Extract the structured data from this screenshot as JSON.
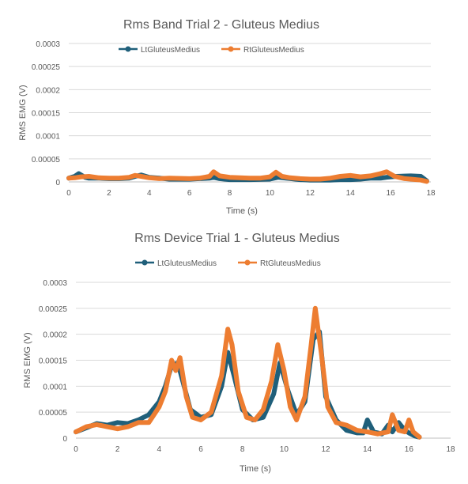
{
  "colors": {
    "lt": "#1F5F7A",
    "rt": "#ED7D31",
    "grid": "#D9D9D9",
    "axis": "#BFBFBF",
    "text": "#595959"
  },
  "chart_data": [
    {
      "type": "line",
      "title": "Rms Band Trial 2 - Gluteus Medius",
      "xlabel": "Time (s)",
      "ylabel": "RMS EMG  (V)",
      "xlim": [
        0,
        18
      ],
      "ylim": [
        0,
        0.0003
      ],
      "xticks": [
        0,
        2,
        4,
        6,
        8,
        10,
        12,
        14,
        16,
        18
      ],
      "yticks": [
        0,
        5e-05,
        0.0001,
        0.00015,
        0.0002,
        0.00025,
        0.0003
      ],
      "ytick_labels": [
        "0",
        "0.00005",
        "0.0001",
        "0.00015",
        "0.0002",
        "0.00025",
        "0.0003"
      ],
      "grid": true,
      "legend": "top-left",
      "series": [
        {
          "name": "LtGluteusMedius",
          "x": [
            0,
            0.3,
            0.5,
            0.8,
            1,
            1.5,
            2,
            2.5,
            3,
            3.3,
            3.6,
            4,
            4.5,
            5,
            6,
            7,
            7.2,
            7.5,
            8,
            9,
            10,
            10.4,
            10.8,
            11.5,
            12,
            13,
            13.5,
            14,
            14.5,
            15,
            15.5,
            15.8,
            16.3,
            17,
            17.5,
            17.8
          ],
          "values": [
            8e-06,
            1.2e-05,
            1.8e-05,
            1e-05,
            8e-06,
            8e-06,
            7e-06,
            7e-06,
            8e-06,
            1.2e-05,
            1.5e-05,
            1e-05,
            8e-06,
            6e-06,
            6e-06,
            8e-06,
            1e-05,
            7e-06,
            5e-06,
            5e-06,
            6e-06,
            1e-05,
            8e-06,
            5e-06,
            4e-06,
            4e-06,
            5e-06,
            5e-06,
            6e-06,
            8e-06,
            8e-06,
            1e-05,
            1.2e-05,
            1.3e-05,
            1.2e-05,
            2e-06
          ]
        },
        {
          "name": "RtGluteusMedius",
          "x": [
            0,
            0.3,
            0.6,
            1,
            1.5,
            2,
            2.5,
            3,
            3.3,
            3.6,
            4,
            4.5,
            5,
            6,
            6.5,
            7,
            7.2,
            7.5,
            8,
            8.5,
            9,
            9.5,
            10,
            10.3,
            10.6,
            11,
            11.5,
            12,
            12.5,
            13,
            13.5,
            14,
            14.5,
            15,
            15.5,
            15.8,
            16.2,
            16.7,
            17,
            17.5,
            17.8
          ],
          "values": [
            8e-06,
            9e-06,
            1.1e-05,
            1.2e-05,
            9e-06,
            8e-06,
            8e-06,
            1e-05,
            1.4e-05,
            1.2e-05,
            9e-06,
            7e-06,
            8e-06,
            7e-06,
            8e-06,
            1.2e-05,
            2.2e-05,
            1.3e-05,
            1e-05,
            9e-06,
            8e-06,
            8e-06,
            1.1e-05,
            2.1e-05,
            1.2e-05,
            9e-06,
            7e-06,
            6e-06,
            6e-06,
            8e-06,
            1.2e-05,
            1.4e-05,
            1.1e-05,
            1.3e-05,
            1.8e-05,
            2.2e-05,
            1.2e-05,
            7e-06,
            6e-06,
            4e-06,
            1e-06
          ]
        }
      ]
    },
    {
      "type": "line",
      "title": "Rms Device Trial 1 - Gluteus Medius",
      "xlabel": "Time (s)",
      "ylabel": "RMS EMG  (V)",
      "xlim": [
        0,
        18
      ],
      "ylim": [
        0,
        0.0003
      ],
      "xticks": [
        0,
        2,
        4,
        6,
        8,
        10,
        12,
        14,
        16,
        18
      ],
      "yticks": [
        0,
        5e-05,
        0.0001,
        0.00015,
        0.0002,
        0.00025,
        0.0003
      ],
      "ytick_labels": [
        "0",
        "0.00005",
        "0.0001",
        "0.00015",
        "0.0002",
        "0.00025",
        "0.0003"
      ],
      "grid": true,
      "legend": "top-left",
      "series": [
        {
          "name": "LtGluteusMedius",
          "x": [
            0,
            0.5,
            1,
            1.5,
            2,
            2.5,
            3,
            3.5,
            4,
            4.3,
            4.6,
            4.9,
            5.2,
            5.5,
            6,
            6.5,
            7,
            7.3,
            7.6,
            8,
            8.5,
            9,
            9.5,
            9.8,
            10.2,
            10.6,
            11,
            11.4,
            11.7,
            12,
            12.5,
            13,
            13.5,
            13.8,
            14,
            14.3,
            14.7,
            15,
            15.2,
            15.5,
            15.8,
            16,
            16.3,
            16.5
          ],
          "values": [
            1.2e-05,
            2e-05,
            2.8e-05,
            2.5e-05,
            3e-05,
            2.8e-05,
            3.5e-05,
            4.5e-05,
            7e-05,
            0.0001,
            0.00014,
            0.000145,
            0.0001,
            5.5e-05,
            4e-05,
            4.5e-05,
            0.0001,
            0.000165,
            0.00012,
            5.5e-05,
            3.5e-05,
            4e-05,
            8.5e-05,
            0.000145,
            9e-05,
            4.5e-05,
            7e-05,
            0.00019,
            0.000205,
            8e-05,
            3.5e-05,
            1.5e-05,
            1e-05,
            1e-05,
            3.5e-05,
            1.2e-05,
            8e-06,
            2.5e-05,
            1.2e-05,
            3e-05,
            1.5e-05,
            1e-05,
            4e-06,
            2e-06
          ]
        },
        {
          "name": "RtGluteusMedius",
          "x": [
            0,
            0.5,
            1,
            1.5,
            2,
            2.5,
            3,
            3.5,
            4,
            4.3,
            4.6,
            4.8,
            5,
            5.3,
            5.6,
            6,
            6.5,
            7,
            7.3,
            7.5,
            7.8,
            8.2,
            8.6,
            9,
            9.4,
            9.7,
            10,
            10.3,
            10.6,
            11,
            11.3,
            11.5,
            11.8,
            12.1,
            12.5,
            13,
            13.5,
            14,
            14.5,
            15,
            15.2,
            15.5,
            15.8,
            16,
            16.2,
            16.5
          ],
          "values": [
            1.2e-05,
            2.2e-05,
            2.6e-05,
            2.2e-05,
            1.8e-05,
            2.2e-05,
            3e-05,
            3e-05,
            6e-05,
            9e-05,
            0.00015,
            0.00013,
            0.000155,
            8e-05,
            4e-05,
            3.5e-05,
            5e-05,
            0.00012,
            0.00021,
            0.00018,
            9e-05,
            4e-05,
            3.5e-05,
            5.5e-05,
            0.00011,
            0.00018,
            0.00013,
            6e-05,
            3.5e-05,
            8e-05,
            0.00018,
            0.00025,
            0.00016,
            6e-05,
            3e-05,
            2.5e-05,
            1.5e-05,
            1.2e-05,
            8e-06,
            1.2e-05,
            4.5e-05,
            1.5e-05,
            1.2e-05,
            3.5e-05,
            1.2e-05,
            2e-06
          ]
        }
      ]
    }
  ]
}
